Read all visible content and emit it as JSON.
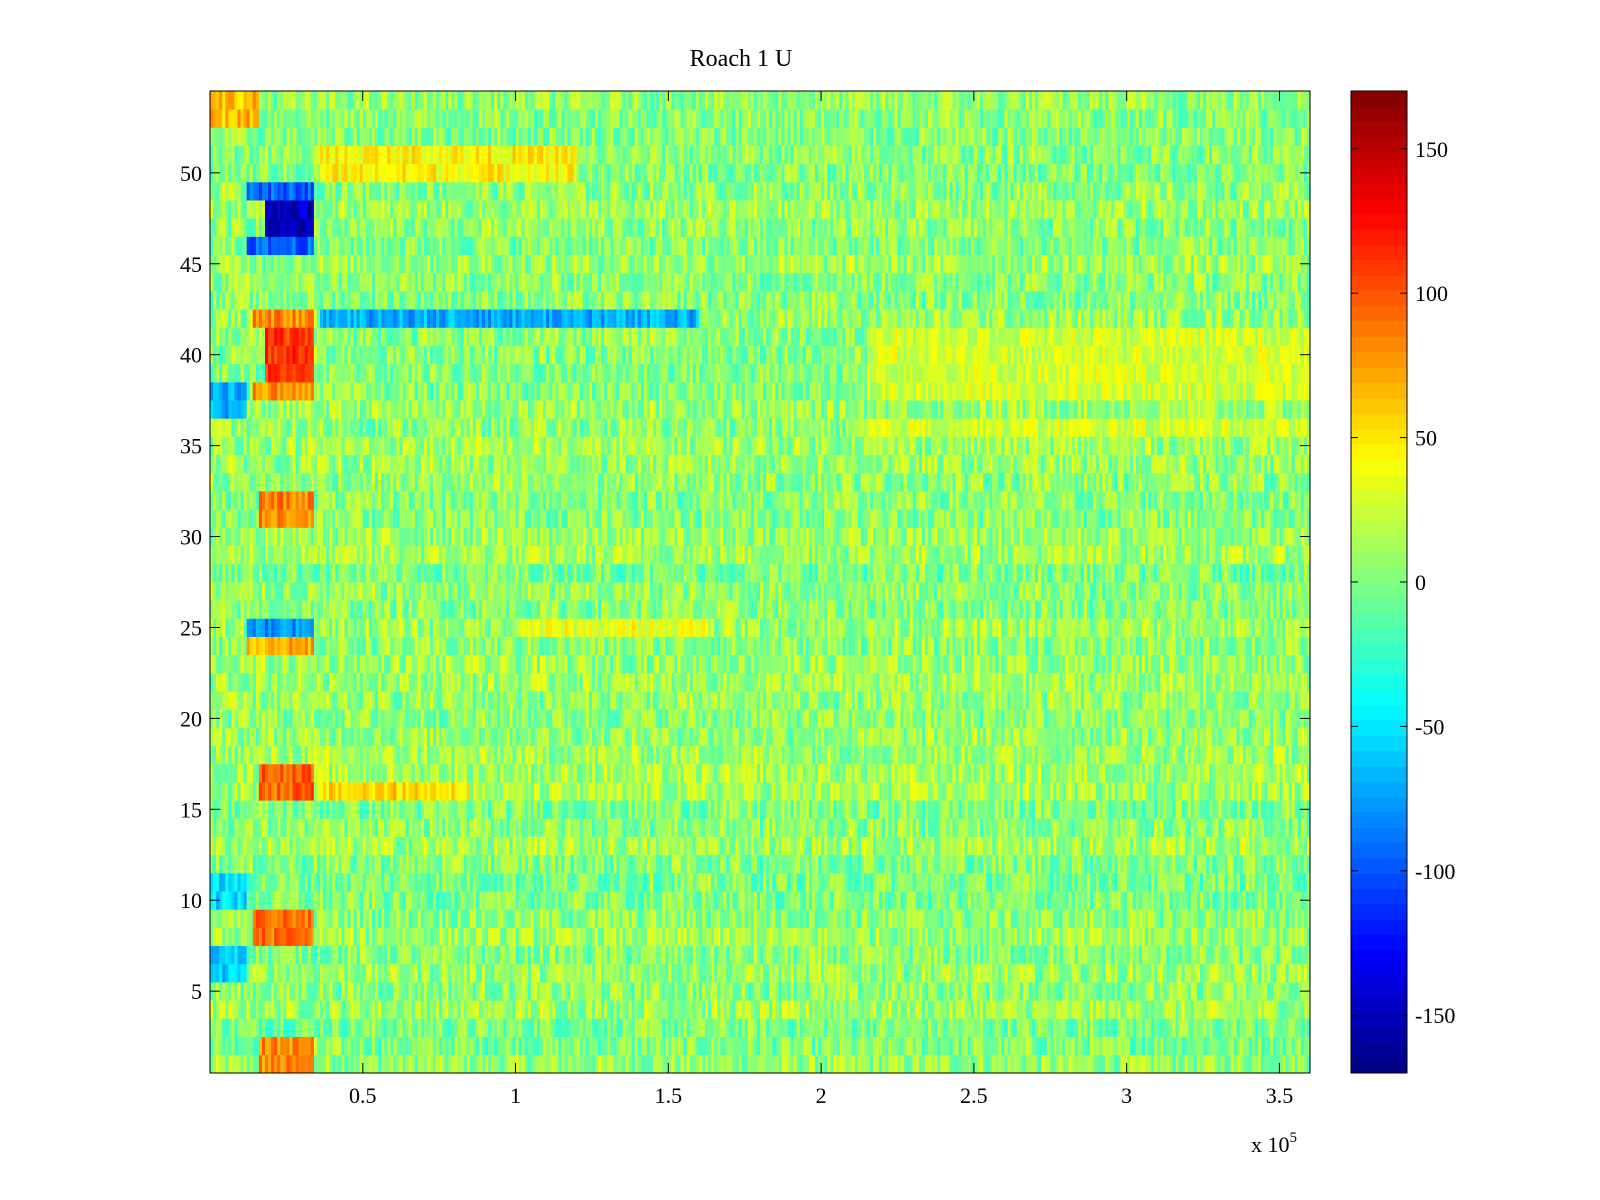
{
  "chart_data": {
    "type": "heatmap",
    "title": "Roach 1 U",
    "xlabel": "",
    "ylabel": "",
    "x_multiplier_label": {
      "base": "x 10",
      "exponent": "5"
    },
    "xlim": [
      0,
      3.6
    ],
    "ylim": [
      0.5,
      54.5
    ],
    "x_ticks": [
      0.5,
      1,
      1.5,
      2,
      2.5,
      3,
      3.5
    ],
    "x_tick_labels": [
      "0.5",
      "1",
      "1.5",
      "2",
      "2.5",
      "3",
      "3.5"
    ],
    "y_ticks": [
      5,
      10,
      15,
      20,
      25,
      30,
      35,
      40,
      45,
      50
    ],
    "y_tick_labels": [
      "5",
      "10",
      "15",
      "20",
      "25",
      "30",
      "35",
      "40",
      "45",
      "50"
    ],
    "rows": 54,
    "colormap": "jet",
    "colorbar": {
      "clim": [
        -170,
        170
      ],
      "ticks": [
        -150,
        -100,
        -50,
        0,
        50,
        100,
        150
      ],
      "tick_labels": [
        "-150",
        "-100",
        "-50",
        "0",
        "50",
        "100",
        "150"
      ]
    },
    "baseline_value": 5,
    "noise_amplitude": 28,
    "features": [
      {
        "rows": [
          47,
          48
        ],
        "x_range": [
          0.18,
          0.34
        ],
        "value": -150
      },
      {
        "rows": [
          46,
          49
        ],
        "x_range": [
          0.12,
          0.34
        ],
        "value": -95
      },
      {
        "rows": [
          39,
          40,
          41
        ],
        "x_range": [
          0.18,
          0.34
        ],
        "value": 110
      },
      {
        "rows": [
          38,
          42
        ],
        "x_range": [
          0.14,
          0.34
        ],
        "value": 80
      },
      {
        "rows": [
          42
        ],
        "x_range": [
          0.36,
          1.6
        ],
        "value": -70
      },
      {
        "rows": [
          31,
          32
        ],
        "x_range": [
          0.16,
          0.34
        ],
        "value": 85
      },
      {
        "rows": [
          25
        ],
        "x_range": [
          0.12,
          0.34
        ],
        "value": -80
      },
      {
        "rows": [
          25
        ],
        "x_range": [
          1.0,
          1.65
        ],
        "value": 35
      },
      {
        "rows": [
          24
        ],
        "x_range": [
          0.12,
          0.34
        ],
        "value": 70
      },
      {
        "rows": [
          16,
          17
        ],
        "x_range": [
          0.16,
          0.34
        ],
        "value": 95
      },
      {
        "rows": [
          16
        ],
        "x_range": [
          0.36,
          0.85
        ],
        "value": 55
      },
      {
        "rows": [
          8,
          9
        ],
        "x_range": [
          0.14,
          0.34
        ],
        "value": 90
      },
      {
        "rows": [
          1,
          2
        ],
        "x_range": [
          0.16,
          0.34
        ],
        "value": 80
      },
      {
        "rows": [
          50,
          51
        ],
        "x_range": [
          0.36,
          1.2
        ],
        "value": 45
      },
      {
        "rows": [
          53,
          54
        ],
        "x_range": [
          0.0,
          0.16
        ],
        "value": 65
      },
      {
        "rows": [
          37,
          38
        ],
        "x_range": [
          0.0,
          0.12
        ],
        "value": -70
      },
      {
        "rows": [
          6,
          7
        ],
        "x_range": [
          0.0,
          0.12
        ],
        "value": -60
      },
      {
        "rows": [
          10,
          11
        ],
        "x_range": [
          0.0,
          0.12
        ],
        "value": -55
      },
      {
        "rows": [
          36,
          38,
          39,
          40,
          41
        ],
        "x_range": [
          2.15,
          3.6
        ],
        "value": 28
      }
    ]
  }
}
